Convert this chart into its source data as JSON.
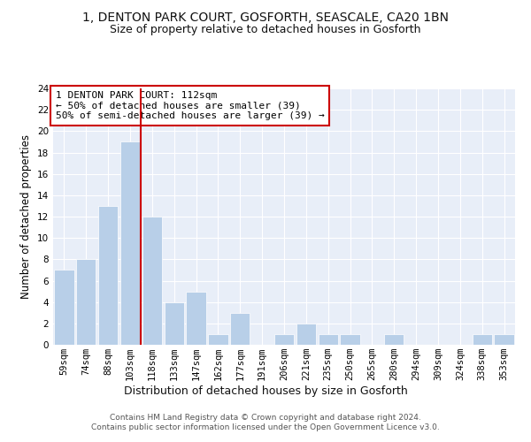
{
  "title1": "1, DENTON PARK COURT, GOSFORTH, SEASCALE, CA20 1BN",
  "title2": "Size of property relative to detached houses in Gosforth",
  "xlabel": "Distribution of detached houses by size in Gosforth",
  "ylabel": "Number of detached properties",
  "categories": [
    "59sqm",
    "74sqm",
    "88sqm",
    "103sqm",
    "118sqm",
    "133sqm",
    "147sqm",
    "162sqm",
    "177sqm",
    "191sqm",
    "206sqm",
    "221sqm",
    "235sqm",
    "250sqm",
    "265sqm",
    "280sqm",
    "294sqm",
    "309sqm",
    "324sqm",
    "338sqm",
    "353sqm"
  ],
  "values": [
    7,
    8,
    13,
    19,
    12,
    4,
    5,
    1,
    3,
    0,
    1,
    2,
    1,
    1,
    0,
    1,
    0,
    0,
    0,
    1,
    1
  ],
  "bar_color": "#b8cfe8",
  "bar_edgecolor": "#b8cfe8",
  "vline_x": 3.5,
  "vline_color": "#cc0000",
  "annotation_text": "1 DENTON PARK COURT: 112sqm\n← 50% of detached houses are smaller (39)\n50% of semi-detached houses are larger (39) →",
  "annotation_box_edgecolor": "#cc0000",
  "ylim": [
    0,
    24
  ],
  "yticks": [
    0,
    2,
    4,
    6,
    8,
    10,
    12,
    14,
    16,
    18,
    20,
    22,
    24
  ],
  "footnote": "Contains HM Land Registry data © Crown copyright and database right 2024.\nContains public sector information licensed under the Open Government Licence v3.0.",
  "background_color": "#e8eef8",
  "title1_fontsize": 10,
  "title2_fontsize": 9,
  "xlabel_fontsize": 9,
  "ylabel_fontsize": 8.5,
  "tick_fontsize": 7.5,
  "annotation_fontsize": 8,
  "footnote_fontsize": 6.5
}
